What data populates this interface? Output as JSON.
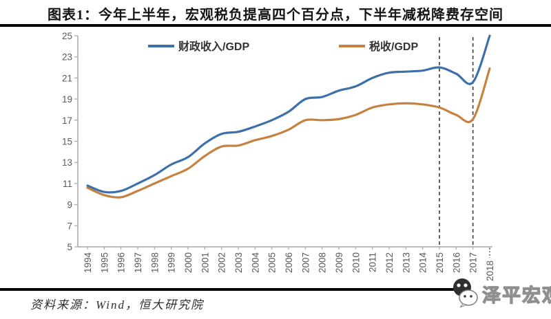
{
  "title": "图表1：今年上半年，宏观税负提高四个百分点，下半年减税降费存空间",
  "footer": {
    "source": "资料来源：Wind，恒大研究院",
    "watermark": "泽平宏观"
  },
  "colors": {
    "series_blue": "#3d6fa8",
    "series_orange": "#c5813f",
    "axis": "#a6a6a6",
    "tick_label": "#595959",
    "legend_text": "#333333",
    "dashed_line": "#3c3c3c",
    "title_text": "#141414",
    "rule_black": "#000000"
  },
  "chart_data": {
    "type": "line",
    "title": "",
    "xlabel": "",
    "ylabel": "",
    "categories": [
      1994,
      1995,
      1996,
      1997,
      1998,
      1999,
      2000,
      2001,
      2002,
      2003,
      2004,
      2005,
      2006,
      2007,
      2008,
      2009,
      2010,
      2011,
      2012,
      2013,
      2014,
      2015,
      2016,
      2017,
      2018
    ],
    "series": [
      {
        "name": "财政收入/GDP",
        "color": "#3d6fa8",
        "values": [
          10.8,
          10.2,
          10.3,
          11.0,
          11.8,
          12.8,
          13.5,
          14.8,
          15.7,
          15.9,
          16.4,
          17.0,
          17.8,
          19.0,
          19.2,
          19.8,
          20.2,
          21.0,
          21.5,
          21.6,
          21.7,
          22.0,
          21.4,
          20.6,
          25.0
        ]
      },
      {
        "name": "税收/GDP",
        "color": "#c5813f",
        "values": [
          10.6,
          9.9,
          9.7,
          10.3,
          11.0,
          11.7,
          12.4,
          13.6,
          14.5,
          14.6,
          15.1,
          15.5,
          16.1,
          17.0,
          17.0,
          17.1,
          17.5,
          18.2,
          18.5,
          18.6,
          18.5,
          18.2,
          17.5,
          17.1,
          21.9
        ]
      }
    ],
    "ylim": [
      5,
      25
    ],
    "ytick_step": 2,
    "grid": false,
    "legend_position": "top",
    "line_style": "smooth",
    "annotations": {
      "dashed_vlines_at_years": [
        2015,
        2017
      ],
      "dotted_axis_tick_at_year": 2018
    }
  }
}
